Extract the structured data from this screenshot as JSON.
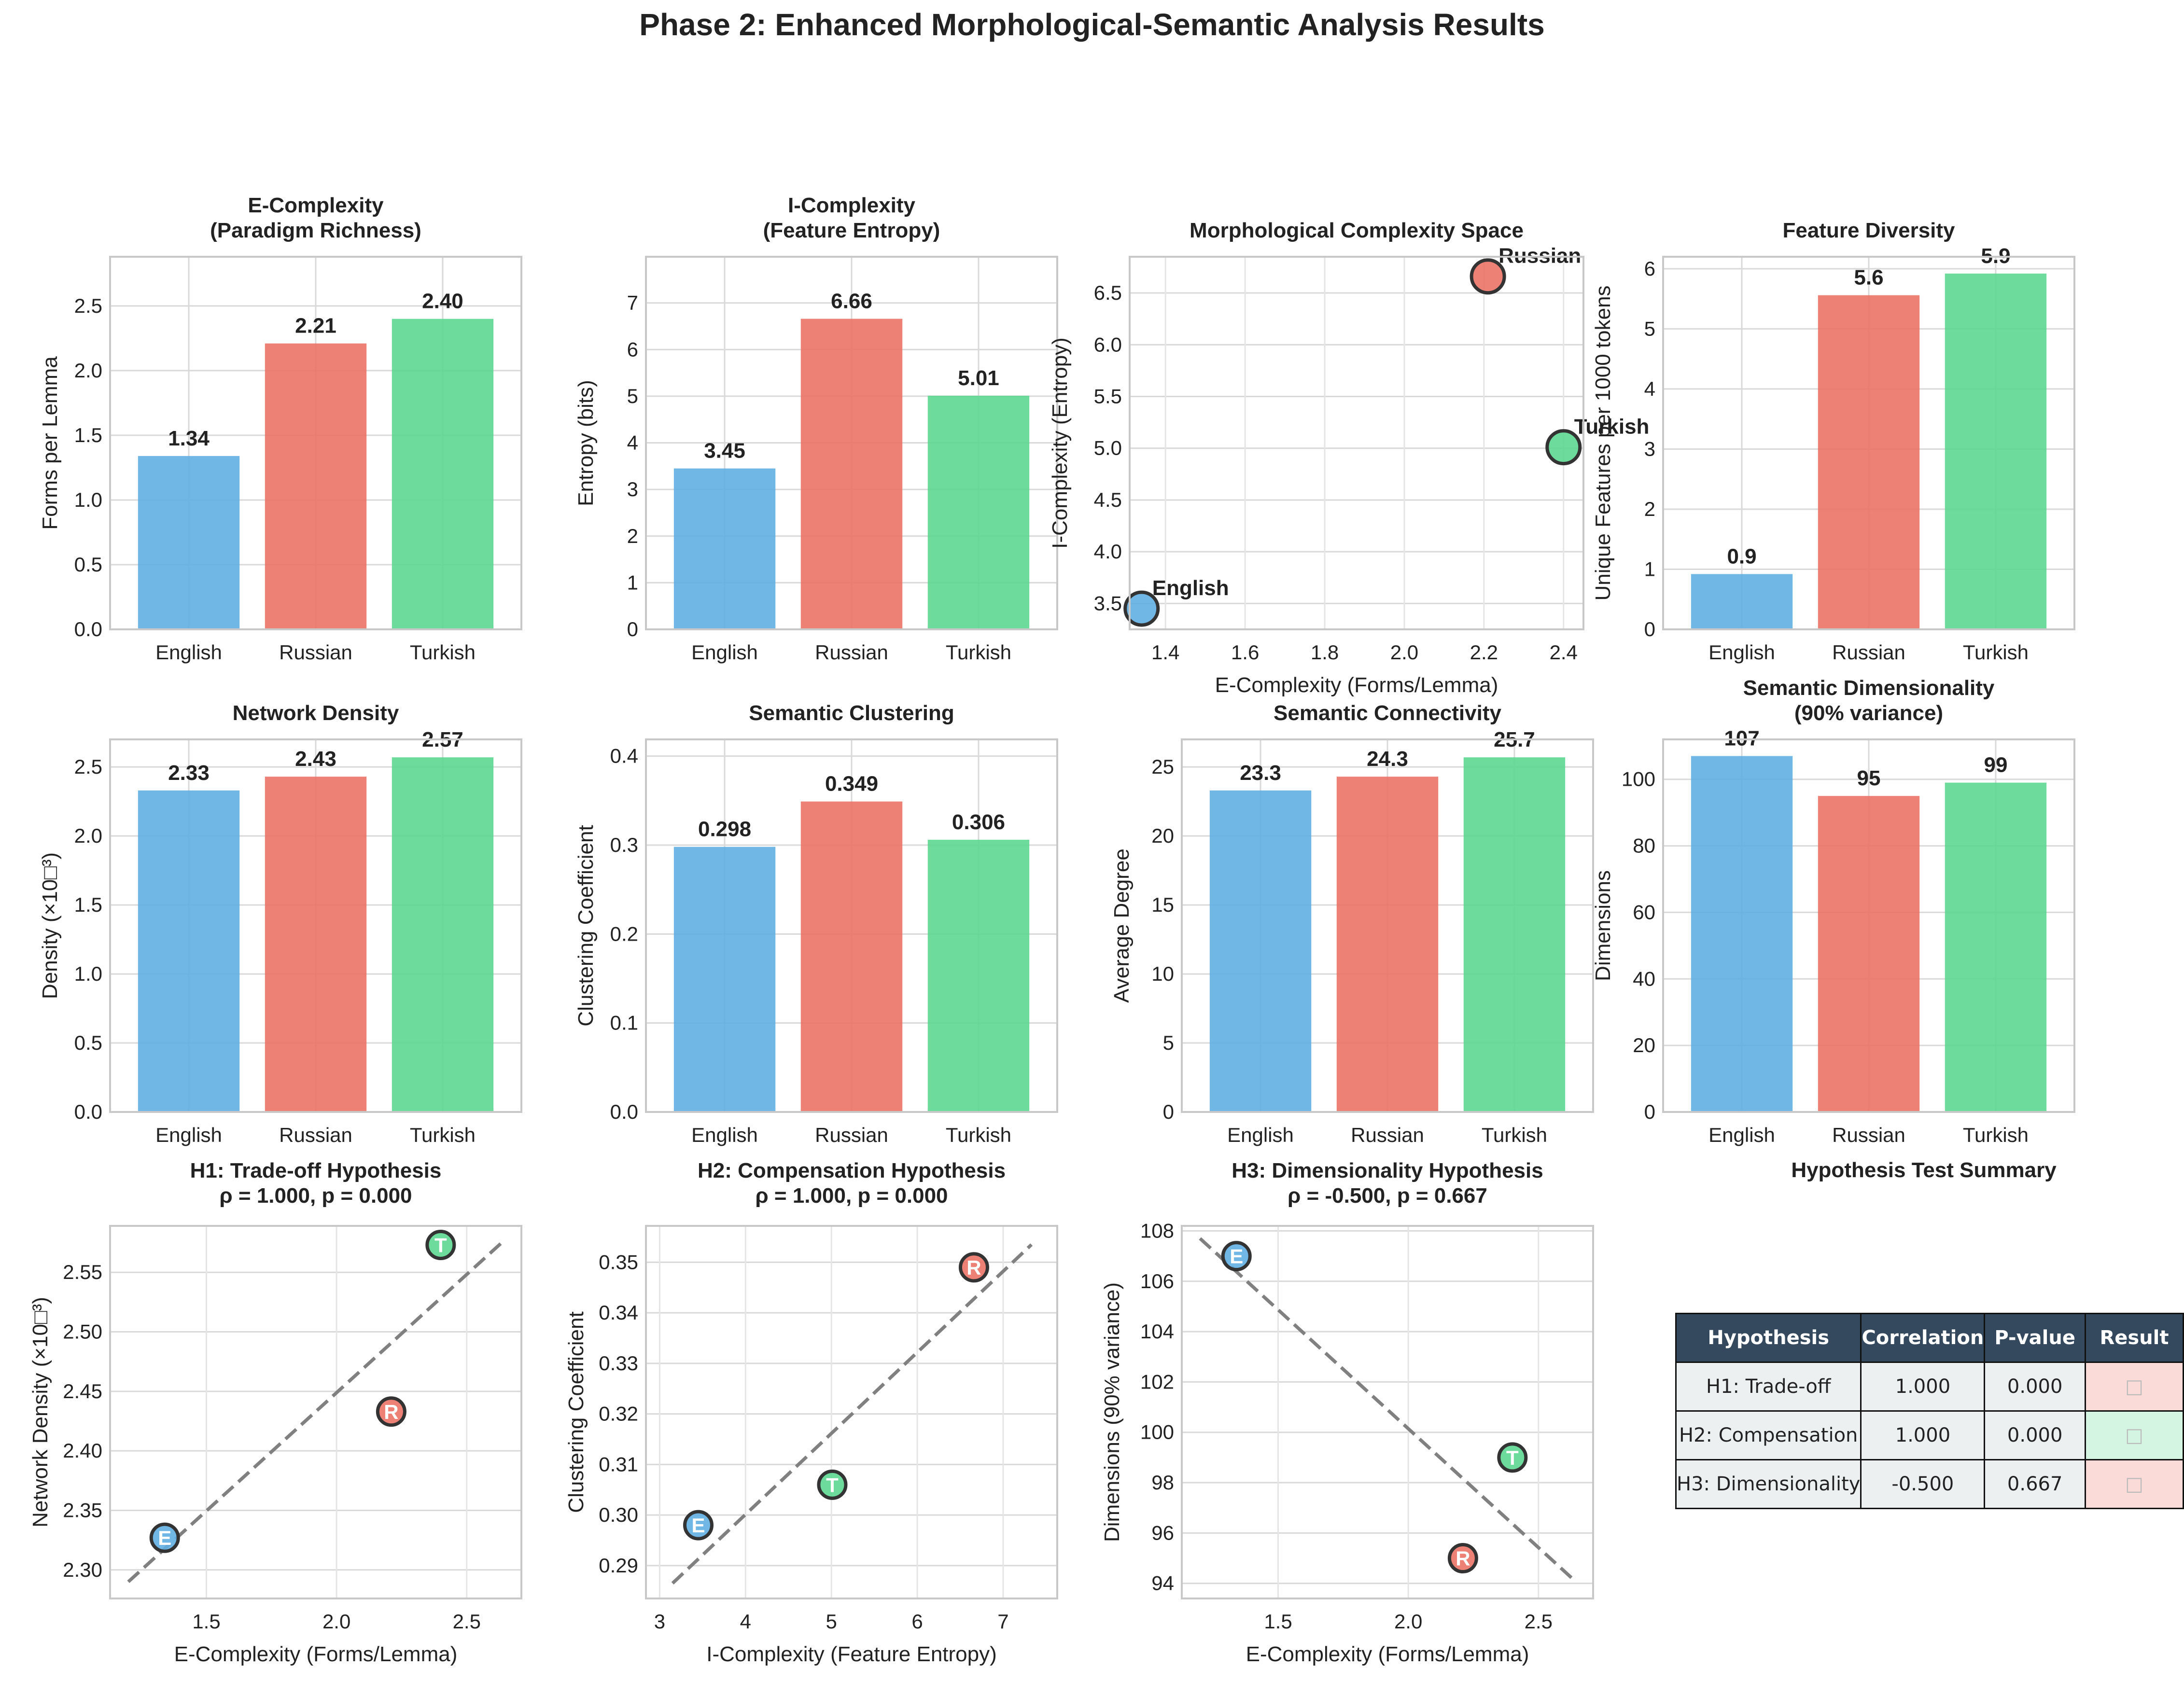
{
  "suptitle": "Phase 2: Enhanced Morphological-Semantic Analysis Results",
  "colors": {
    "English": "#5dade2",
    "Russian": "#ec7063",
    "Turkish": "#58d68d"
  },
  "chart_data": [
    {
      "id": "e_complexity",
      "type": "bar",
      "title": "E-Complexity\n(Paradigm Richness)",
      "categories": [
        "English",
        "Russian",
        "Turkish"
      ],
      "values": [
        1.34,
        2.21,
        2.4
      ],
      "value_labels": [
        "1.34",
        "2.21",
        "2.40"
      ],
      "ylabel": "Forms per Lemma",
      "ylim": [
        0,
        2.88
      ],
      "yticks": [
        0,
        0.5,
        1.0,
        1.5,
        2.0,
        2.5
      ],
      "yticklabels": [
        "0.0",
        "0.5",
        "1.0",
        "1.5",
        "2.0",
        "2.5"
      ]
    },
    {
      "id": "i_complexity",
      "type": "bar",
      "title": "I-Complexity\n(Feature Entropy)",
      "categories": [
        "English",
        "Russian",
        "Turkish"
      ],
      "values": [
        3.45,
        6.66,
        5.01
      ],
      "value_labels": [
        "3.45",
        "6.66",
        "5.01"
      ],
      "ylabel": "Entropy (bits)",
      "ylim": [
        0,
        7.99
      ],
      "yticks": [
        0,
        1,
        2,
        3,
        4,
        5,
        6,
        7
      ],
      "yticklabels": [
        "0",
        "1",
        "2",
        "3",
        "4",
        "5",
        "6",
        "7"
      ]
    },
    {
      "id": "complexity_space",
      "type": "scatter",
      "title": "Morphological Complexity Space",
      "points": [
        {
          "name": "English",
          "x": 1.34,
          "y": 3.45,
          "label": "English"
        },
        {
          "name": "Russian",
          "x": 2.21,
          "y": 6.66,
          "label": "Russian"
        },
        {
          "name": "Turkish",
          "x": 2.4,
          "y": 5.01,
          "label": "Turkish"
        }
      ],
      "xlabel": "E-Complexity (Forms/Lemma)",
      "ylabel": "I-Complexity (Entropy)",
      "xlim": [
        1.31,
        2.45
      ],
      "ylim": [
        3.25,
        6.85
      ],
      "xticks": [
        1.4,
        1.6,
        1.8,
        2.0,
        2.2,
        2.4
      ],
      "xticklabels": [
        "1.4",
        "1.6",
        "1.8",
        "2.0",
        "2.2",
        "2.4"
      ],
      "yticks": [
        3.5,
        4.0,
        4.5,
        5.0,
        5.5,
        6.0,
        6.5
      ],
      "yticklabels": [
        "3.5",
        "4.0",
        "4.5",
        "5.0",
        "5.5",
        "6.0",
        "6.5"
      ]
    },
    {
      "id": "feature_diversity",
      "type": "bar",
      "title": "Feature Diversity",
      "categories": [
        "English",
        "Russian",
        "Turkish"
      ],
      "values": [
        0.92,
        5.56,
        5.92
      ],
      "value_labels": [
        "0.9",
        "5.6",
        "5.9"
      ],
      "ylabel": "Unique Features per 1000 tokens",
      "ylim": [
        0,
        6.2
      ],
      "yticks": [
        0,
        1,
        2,
        3,
        4,
        5,
        6
      ],
      "yticklabels": [
        "0",
        "1",
        "2",
        "3",
        "4",
        "5",
        "6"
      ]
    },
    {
      "id": "network_density",
      "type": "bar",
      "title": "Network Density",
      "categories": [
        "English",
        "Russian",
        "Turkish"
      ],
      "values": [
        2.33,
        2.43,
        2.57
      ],
      "value_labels": [
        "2.33",
        "2.43",
        "2.57"
      ],
      "ylabel": "Density (×10□³)",
      "ylim": [
        0,
        2.7
      ],
      "yticks": [
        0,
        0.5,
        1.0,
        1.5,
        2.0,
        2.5
      ],
      "yticklabels": [
        "0.0",
        "0.5",
        "1.0",
        "1.5",
        "2.0",
        "2.5"
      ]
    },
    {
      "id": "semantic_clustering",
      "type": "bar",
      "title": "Semantic Clustering",
      "categories": [
        "English",
        "Russian",
        "Turkish"
      ],
      "values": [
        0.298,
        0.349,
        0.306
      ],
      "value_labels": [
        "0.298",
        "0.349",
        "0.306"
      ],
      "ylabel": "Clustering Coefficient",
      "ylim": [
        0,
        0.4188
      ],
      "yticks": [
        0,
        0.1,
        0.2,
        0.3,
        0.4
      ],
      "yticklabels": [
        "0.0",
        "0.1",
        "0.2",
        "0.3",
        "0.4"
      ]
    },
    {
      "id": "semantic_connectivity",
      "type": "bar",
      "title": "Semantic Connectivity",
      "categories": [
        "English",
        "Russian",
        "Turkish"
      ],
      "values": [
        23.3,
        24.3,
        25.7
      ],
      "value_labels": [
        "23.3",
        "24.3",
        "25.7"
      ],
      "ylabel": "Average Degree",
      "ylim": [
        0,
        27
      ],
      "yticks": [
        0,
        5,
        10,
        15,
        20,
        25
      ],
      "yticklabels": [
        "0",
        "5",
        "10",
        "15",
        "20",
        "25"
      ]
    },
    {
      "id": "semantic_dimensionality",
      "type": "bar",
      "title": "Semantic Dimensionality\n(90% variance)",
      "categories": [
        "English",
        "Russian",
        "Turkish"
      ],
      "values": [
        107,
        95,
        99
      ],
      "value_labels": [
        "107",
        "95",
        "99"
      ],
      "ylabel": "Dimensions",
      "ylim": [
        0,
        112
      ],
      "yticks": [
        0,
        20,
        40,
        60,
        80,
        100
      ],
      "yticklabels": [
        "0",
        "20",
        "40",
        "60",
        "80",
        "100"
      ]
    },
    {
      "id": "h1",
      "type": "scatter",
      "title": "H1: Trade-off Hypothesis\nρ = 1.000, p = 0.000",
      "points": [
        {
          "name": "English",
          "x": 1.34,
          "y": 2.327,
          "label": "E"
        },
        {
          "name": "Russian",
          "x": 2.21,
          "y": 2.433,
          "label": "R"
        },
        {
          "name": "Turkish",
          "x": 2.4,
          "y": 2.573,
          "label": "T"
        }
      ],
      "trend": [
        [
          1.2,
          2.29
        ],
        [
          2.64,
          2.576
        ]
      ],
      "xlabel": "E-Complexity (Forms/Lemma)",
      "ylabel": "Network Density (×10□³)",
      "xlim": [
        1.13,
        2.71
      ],
      "ylim": [
        2.276,
        2.589
      ],
      "xticks": [
        1.5,
        2.0,
        2.5
      ],
      "xticklabels": [
        "1.5",
        "2.0",
        "2.5"
      ],
      "yticks": [
        2.3,
        2.35,
        2.4,
        2.45,
        2.5,
        2.55
      ],
      "yticklabels": [
        "2.30",
        "2.35",
        "2.40",
        "2.45",
        "2.50",
        "2.55"
      ]
    },
    {
      "id": "h2",
      "type": "scatter",
      "title": "H2: Compensation Hypothesis\nρ = 1.000, p = 0.000",
      "points": [
        {
          "name": "English",
          "x": 3.45,
          "y": 0.298,
          "label": "E"
        },
        {
          "name": "Russian",
          "x": 6.66,
          "y": 0.349,
          "label": "R"
        },
        {
          "name": "Turkish",
          "x": 5.01,
          "y": 0.306,
          "label": "T"
        }
      ],
      "trend": [
        [
          3.15,
          0.2865
        ],
        [
          7.33,
          0.3535
        ]
      ],
      "xlabel": "I-Complexity (Feature Entropy)",
      "ylabel": "Clustering Coefficient",
      "xlim": [
        2.84,
        7.63
      ],
      "ylim": [
        0.2835,
        0.3572
      ],
      "xticks": [
        3,
        4,
        5,
        6,
        7
      ],
      "xticklabels": [
        "3",
        "4",
        "5",
        "6",
        "7"
      ],
      "yticks": [
        0.29,
        0.3,
        0.31,
        0.32,
        0.33,
        0.34,
        0.35
      ],
      "yticklabels": [
        "0.29",
        "0.30",
        "0.31",
        "0.32",
        "0.33",
        "0.34",
        "0.35"
      ]
    },
    {
      "id": "h3",
      "type": "scatter",
      "title": "H3: Dimensionality Hypothesis\nρ = -0.500, p = 0.667",
      "points": [
        {
          "name": "English",
          "x": 1.34,
          "y": 107,
          "label": "E"
        },
        {
          "name": "Russian",
          "x": 2.21,
          "y": 95,
          "label": "R"
        },
        {
          "name": "Turkish",
          "x": 2.4,
          "y": 99,
          "label": "T"
        }
      ],
      "trend": [
        [
          1.2,
          107.7
        ],
        [
          2.64,
          94.1
        ]
      ],
      "xlabel": "E-Complexity (Forms/Lemma)",
      "ylabel": "Dimensions (90% variance)",
      "xlim": [
        1.13,
        2.71
      ],
      "ylim": [
        93.4,
        108.2
      ],
      "xticks": [
        1.5,
        2.0,
        2.5
      ],
      "xticklabels": [
        "1.5",
        "2.0",
        "2.5"
      ],
      "yticks": [
        94,
        96,
        98,
        100,
        102,
        104,
        106,
        108
      ],
      "yticklabels": [
        "94",
        "96",
        "98",
        "100",
        "102",
        "104",
        "106",
        "108"
      ]
    }
  ],
  "summary": {
    "title": "Hypothesis Test Summary",
    "headers": [
      "Hypothesis",
      "Correlation",
      "P-value",
      "Result"
    ],
    "rows": [
      {
        "hypothesis": "H1: Trade-off",
        "correlation": "1.000",
        "pvalue": "0.000",
        "result": "□",
        "result_color": "#fadbd8"
      },
      {
        "hypothesis": "H2: Compensation",
        "correlation": "1.000",
        "pvalue": "0.000",
        "result": "□",
        "result_color": "#d5f5e3"
      },
      {
        "hypothesis": "H3: Dimensionality",
        "correlation": "-0.500",
        "pvalue": "0.667",
        "result": "□",
        "result_color": "#fadbd8"
      }
    ]
  }
}
